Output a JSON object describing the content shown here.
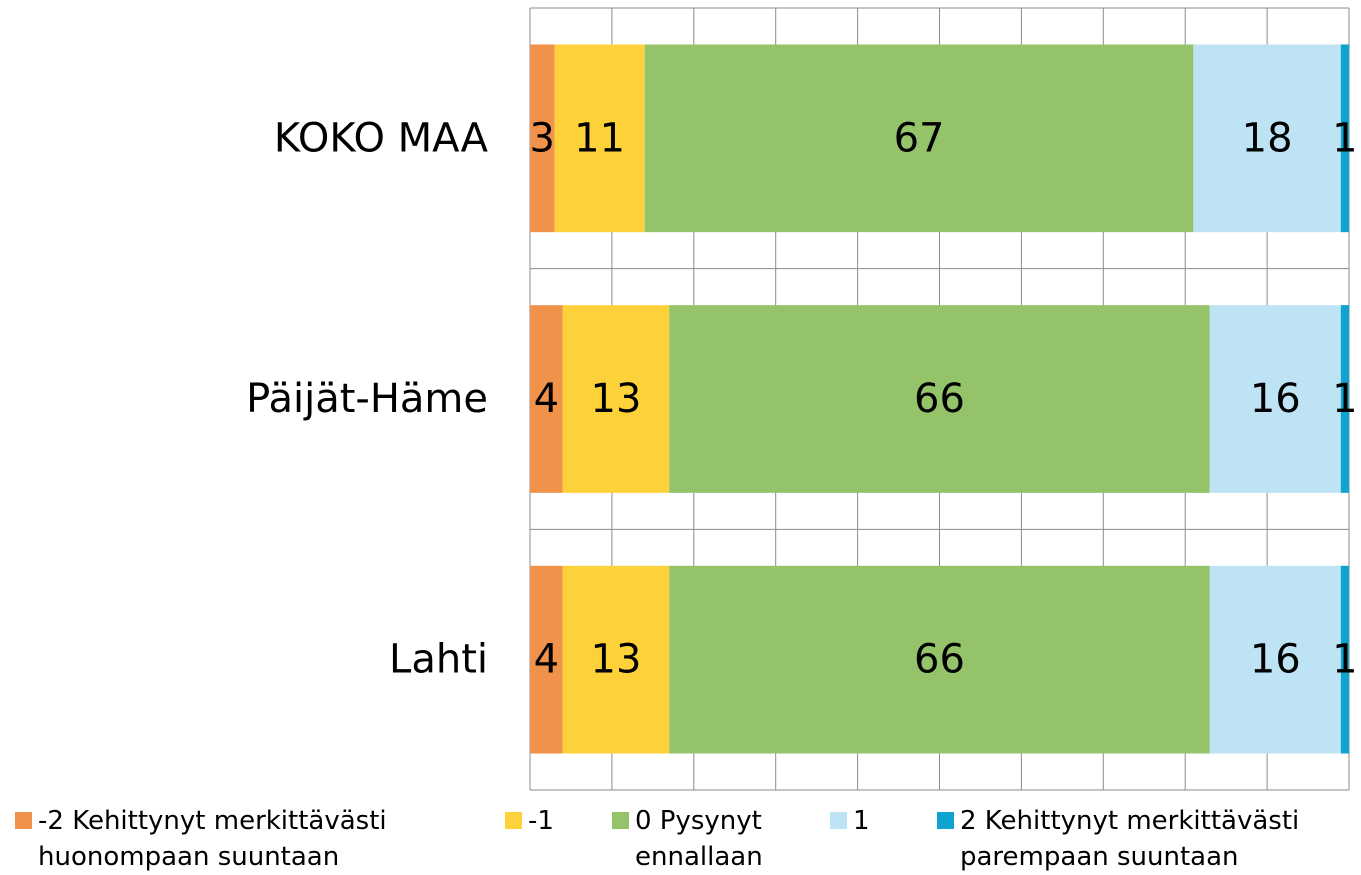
{
  "chart_data": {
    "type": "stacked-bar-horizontal",
    "categories": [
      "KOKO MAA",
      "Päijät-Häme",
      "Lahti"
    ],
    "series": [
      {
        "name": "-2  Kehittynyt merkittävästi\nhuonompaan suuntaan",
        "color": "#f0924a",
        "values": [
          3,
          4,
          4
        ]
      },
      {
        "name": "-1",
        "color": "#fdd13a",
        "values": [
          11,
          13,
          13
        ]
      },
      {
        "name": "0  Pysynyt\nennallaan",
        "color": "#94c36a",
        "values": [
          67,
          66,
          66
        ]
      },
      {
        "name": "1",
        "color": "#bde3f5",
        "values": [
          18,
          16,
          16
        ]
      },
      {
        "name": "2  Kehittynyt merkittävästi\nparempaan suuntaan",
        "color": "#0fa3cf",
        "values": [
          1,
          1,
          1
        ]
      }
    ],
    "xlim": [
      0,
      100
    ],
    "xticks": [
      0,
      10,
      20,
      30,
      40,
      50,
      60,
      70,
      80,
      90,
      100
    ],
    "grid": true
  }
}
